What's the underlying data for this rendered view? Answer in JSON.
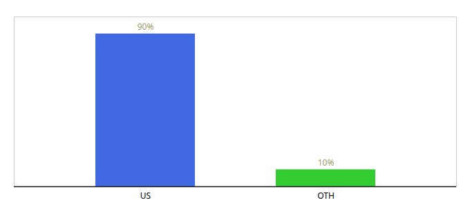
{
  "chart_data": {
    "type": "bar",
    "categories": [
      "US",
      "OTH"
    ],
    "values": [
      90,
      10
    ],
    "value_labels": [
      "90%",
      "10%"
    ],
    "colors": [
      "#4169e1",
      "#33cc33"
    ],
    "ylim": [
      0,
      100
    ],
    "data_labels": true,
    "tick_labels": "x",
    "grid": false
  }
}
